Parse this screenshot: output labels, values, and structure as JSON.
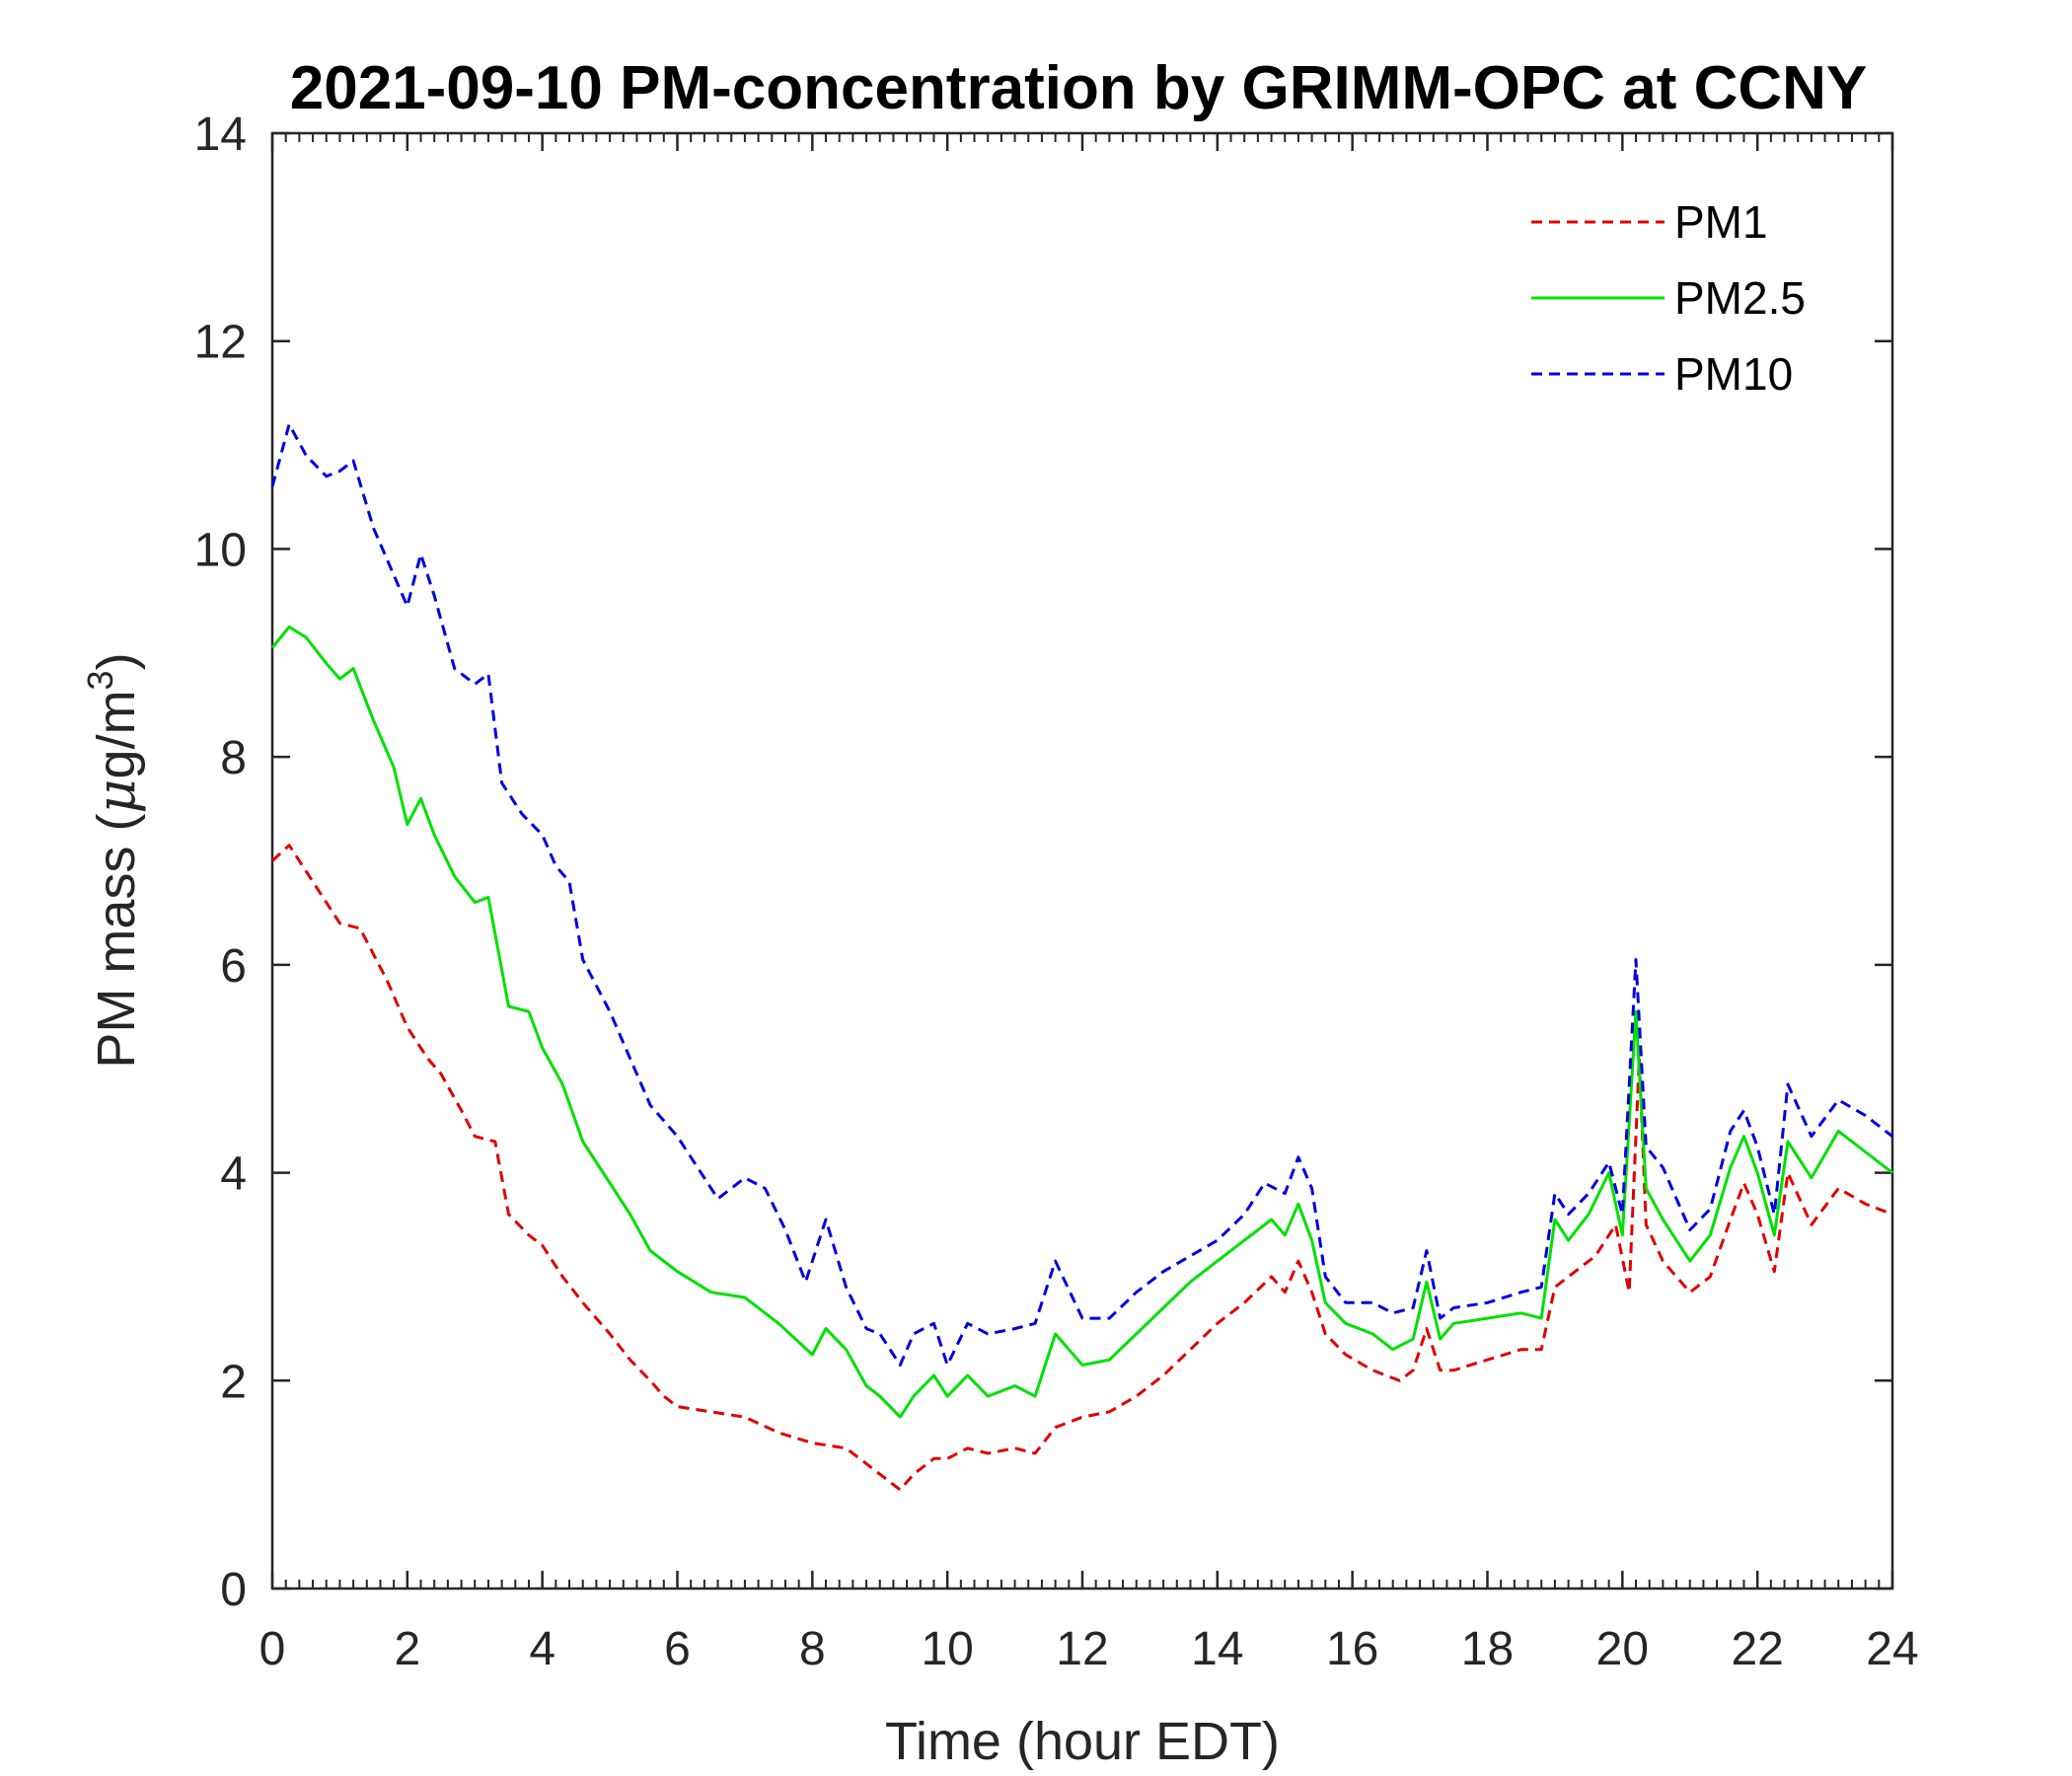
{
  "chart_data": {
    "type": "line",
    "title": "2021-09-10 PM-concentration by GRIMM-OPC at CCNY",
    "xlabel": "Time (hour EDT)",
    "ylabel": {
      "prefix": "PM mass (",
      "mu": "μ",
      "unit": "g/m",
      "exp": "3",
      "suffix": ")"
    },
    "xlim": [
      0,
      24
    ],
    "ylim": [
      0,
      14
    ],
    "xticks": [
      0,
      2,
      4,
      6,
      8,
      10,
      12,
      14,
      16,
      18,
      20,
      22,
      24
    ],
    "yticks": [
      0,
      2,
      4,
      6,
      8,
      10,
      12,
      14
    ],
    "legend_position": "top-right",
    "series": [
      {
        "name": "PM1",
        "color": "#e00000",
        "style": "dashed",
        "points": [
          [
            0,
            7.0
          ],
          [
            0.25,
            7.15
          ],
          [
            0.5,
            6.9
          ],
          [
            0.8,
            6.6
          ],
          [
            1.0,
            6.4
          ],
          [
            1.3,
            6.35
          ],
          [
            1.5,
            6.1
          ],
          [
            1.7,
            5.85
          ],
          [
            2.0,
            5.4
          ],
          [
            2.3,
            5.1
          ],
          [
            2.5,
            4.95
          ],
          [
            2.8,
            4.6
          ],
          [
            3.0,
            4.35
          ],
          [
            3.3,
            4.3
          ],
          [
            3.5,
            3.6
          ],
          [
            3.8,
            3.4
          ],
          [
            4.0,
            3.3
          ],
          [
            4.3,
            3.0
          ],
          [
            4.6,
            2.75
          ],
          [
            5.0,
            2.45
          ],
          [
            5.3,
            2.2
          ],
          [
            5.6,
            2.0
          ],
          [
            5.8,
            1.85
          ],
          [
            6.0,
            1.75
          ],
          [
            6.5,
            1.7
          ],
          [
            7.0,
            1.65
          ],
          [
            7.5,
            1.5
          ],
          [
            8.0,
            1.4
          ],
          [
            8.5,
            1.35
          ],
          [
            8.8,
            1.2
          ],
          [
            9.0,
            1.1
          ],
          [
            9.3,
            0.95
          ],
          [
            9.5,
            1.1
          ],
          [
            9.8,
            1.25
          ],
          [
            10.0,
            1.25
          ],
          [
            10.3,
            1.35
          ],
          [
            10.6,
            1.3
          ],
          [
            11.0,
            1.35
          ],
          [
            11.3,
            1.3
          ],
          [
            11.6,
            1.55
          ],
          [
            12.0,
            1.65
          ],
          [
            12.4,
            1.7
          ],
          [
            12.8,
            1.85
          ],
          [
            13.2,
            2.05
          ],
          [
            13.6,
            2.3
          ],
          [
            14.0,
            2.55
          ],
          [
            14.4,
            2.75
          ],
          [
            14.8,
            3.0
          ],
          [
            15.0,
            2.85
          ],
          [
            15.2,
            3.15
          ],
          [
            15.4,
            2.85
          ],
          [
            15.6,
            2.45
          ],
          [
            15.9,
            2.25
          ],
          [
            16.3,
            2.1
          ],
          [
            16.7,
            2.0
          ],
          [
            16.9,
            2.1
          ],
          [
            17.1,
            2.5
          ],
          [
            17.3,
            2.1
          ],
          [
            17.5,
            2.1
          ],
          [
            18.0,
            2.2
          ],
          [
            18.5,
            2.3
          ],
          [
            18.8,
            2.3
          ],
          [
            19.0,
            2.9
          ],
          [
            19.3,
            3.05
          ],
          [
            19.6,
            3.2
          ],
          [
            19.9,
            3.5
          ],
          [
            20.1,
            2.85
          ],
          [
            20.25,
            5.1
          ],
          [
            20.35,
            3.5
          ],
          [
            20.6,
            3.15
          ],
          [
            21.0,
            2.85
          ],
          [
            21.3,
            3.0
          ],
          [
            21.6,
            3.55
          ],
          [
            21.8,
            3.9
          ],
          [
            22.0,
            3.6
          ],
          [
            22.25,
            3.05
          ],
          [
            22.45,
            4.0
          ],
          [
            22.8,
            3.5
          ],
          [
            23.2,
            3.85
          ],
          [
            23.6,
            3.7
          ],
          [
            24.0,
            3.6
          ]
        ]
      },
      {
        "name": "PM2.5",
        "color": "#00e000",
        "style": "solid",
        "points": [
          [
            0,
            9.05
          ],
          [
            0.25,
            9.25
          ],
          [
            0.5,
            9.15
          ],
          [
            0.8,
            8.9
          ],
          [
            1.0,
            8.75
          ],
          [
            1.2,
            8.85
          ],
          [
            1.5,
            8.35
          ],
          [
            1.8,
            7.9
          ],
          [
            2.0,
            7.35
          ],
          [
            2.2,
            7.6
          ],
          [
            2.4,
            7.25
          ],
          [
            2.7,
            6.85
          ],
          [
            3.0,
            6.6
          ],
          [
            3.2,
            6.65
          ],
          [
            3.5,
            5.6
          ],
          [
            3.8,
            5.55
          ],
          [
            4.0,
            5.2
          ],
          [
            4.3,
            4.85
          ],
          [
            4.6,
            4.3
          ],
          [
            5.0,
            3.9
          ],
          [
            5.3,
            3.6
          ],
          [
            5.6,
            3.25
          ],
          [
            6.0,
            3.05
          ],
          [
            6.5,
            2.85
          ],
          [
            7.0,
            2.8
          ],
          [
            7.5,
            2.55
          ],
          [
            8.0,
            2.25
          ],
          [
            8.2,
            2.5
          ],
          [
            8.5,
            2.3
          ],
          [
            8.8,
            1.95
          ],
          [
            9.0,
            1.85
          ],
          [
            9.3,
            1.65
          ],
          [
            9.5,
            1.85
          ],
          [
            9.8,
            2.05
          ],
          [
            10.0,
            1.85
          ],
          [
            10.3,
            2.05
          ],
          [
            10.6,
            1.85
          ],
          [
            11.0,
            1.95
          ],
          [
            11.3,
            1.85
          ],
          [
            11.6,
            2.45
          ],
          [
            12.0,
            2.15
          ],
          [
            12.4,
            2.2
          ],
          [
            12.8,
            2.45
          ],
          [
            13.2,
            2.7
          ],
          [
            13.6,
            2.95
          ],
          [
            14.0,
            3.15
          ],
          [
            14.4,
            3.35
          ],
          [
            14.8,
            3.55
          ],
          [
            15.0,
            3.4
          ],
          [
            15.2,
            3.7
          ],
          [
            15.4,
            3.35
          ],
          [
            15.6,
            2.75
          ],
          [
            15.9,
            2.55
          ],
          [
            16.3,
            2.45
          ],
          [
            16.6,
            2.3
          ],
          [
            16.9,
            2.4
          ],
          [
            17.1,
            2.95
          ],
          [
            17.3,
            2.4
          ],
          [
            17.5,
            2.55
          ],
          [
            18.0,
            2.6
          ],
          [
            18.5,
            2.65
          ],
          [
            18.8,
            2.6
          ],
          [
            19.0,
            3.55
          ],
          [
            19.2,
            3.35
          ],
          [
            19.5,
            3.6
          ],
          [
            19.8,
            4.0
          ],
          [
            20.0,
            3.4
          ],
          [
            20.2,
            5.55
          ],
          [
            20.35,
            3.85
          ],
          [
            20.6,
            3.55
          ],
          [
            21.0,
            3.15
          ],
          [
            21.3,
            3.4
          ],
          [
            21.6,
            4.05
          ],
          [
            21.8,
            4.35
          ],
          [
            22.0,
            4.0
          ],
          [
            22.25,
            3.4
          ],
          [
            22.45,
            4.3
          ],
          [
            22.8,
            3.95
          ],
          [
            23.2,
            4.4
          ],
          [
            23.6,
            4.2
          ],
          [
            24.0,
            4.0
          ]
        ]
      },
      {
        "name": "PM10",
        "color": "#0000e0",
        "style": "dashed",
        "points": [
          [
            0,
            10.6
          ],
          [
            0.25,
            11.2
          ],
          [
            0.5,
            10.9
          ],
          [
            0.8,
            10.7
          ],
          [
            1.0,
            10.75
          ],
          [
            1.2,
            10.85
          ],
          [
            1.5,
            10.2
          ],
          [
            1.8,
            9.75
          ],
          [
            2.0,
            9.45
          ],
          [
            2.2,
            9.95
          ],
          [
            2.4,
            9.55
          ],
          [
            2.7,
            8.85
          ],
          [
            3.0,
            8.7
          ],
          [
            3.2,
            8.8
          ],
          [
            3.4,
            7.75
          ],
          [
            3.7,
            7.45
          ],
          [
            4.0,
            7.25
          ],
          [
            4.2,
            6.95
          ],
          [
            4.4,
            6.8
          ],
          [
            4.6,
            6.05
          ],
          [
            5.0,
            5.55
          ],
          [
            5.3,
            5.1
          ],
          [
            5.6,
            4.65
          ],
          [
            6.0,
            4.35
          ],
          [
            6.3,
            4.05
          ],
          [
            6.6,
            3.75
          ],
          [
            7.0,
            3.95
          ],
          [
            7.3,
            3.85
          ],
          [
            7.6,
            3.45
          ],
          [
            7.9,
            2.95
          ],
          [
            8.2,
            3.55
          ],
          [
            8.5,
            2.9
          ],
          [
            8.8,
            2.5
          ],
          [
            9.0,
            2.45
          ],
          [
            9.3,
            2.15
          ],
          [
            9.5,
            2.45
          ],
          [
            9.8,
            2.55
          ],
          [
            10.0,
            2.15
          ],
          [
            10.3,
            2.55
          ],
          [
            10.6,
            2.45
          ],
          [
            11.0,
            2.5
          ],
          [
            11.3,
            2.55
          ],
          [
            11.6,
            3.15
          ],
          [
            12.0,
            2.6
          ],
          [
            12.4,
            2.6
          ],
          [
            12.8,
            2.85
          ],
          [
            13.2,
            3.05
          ],
          [
            13.6,
            3.2
          ],
          [
            14.0,
            3.35
          ],
          [
            14.4,
            3.6
          ],
          [
            14.7,
            3.9
          ],
          [
            15.0,
            3.8
          ],
          [
            15.2,
            4.15
          ],
          [
            15.4,
            3.85
          ],
          [
            15.6,
            3.0
          ],
          [
            15.9,
            2.75
          ],
          [
            16.3,
            2.75
          ],
          [
            16.6,
            2.65
          ],
          [
            16.9,
            2.7
          ],
          [
            17.1,
            3.25
          ],
          [
            17.3,
            2.6
          ],
          [
            17.5,
            2.7
          ],
          [
            18.0,
            2.75
          ],
          [
            18.5,
            2.85
          ],
          [
            18.8,
            2.9
          ],
          [
            19.0,
            3.8
          ],
          [
            19.2,
            3.6
          ],
          [
            19.5,
            3.8
          ],
          [
            19.8,
            4.1
          ],
          [
            20.0,
            3.6
          ],
          [
            20.2,
            6.05
          ],
          [
            20.35,
            4.25
          ],
          [
            20.6,
            4.05
          ],
          [
            21.0,
            3.45
          ],
          [
            21.3,
            3.65
          ],
          [
            21.6,
            4.4
          ],
          [
            21.8,
            4.6
          ],
          [
            22.0,
            4.25
          ],
          [
            22.25,
            3.6
          ],
          [
            22.45,
            4.85
          ],
          [
            22.8,
            4.35
          ],
          [
            23.2,
            4.7
          ],
          [
            23.6,
            4.55
          ],
          [
            24.0,
            4.35
          ]
        ]
      }
    ]
  }
}
